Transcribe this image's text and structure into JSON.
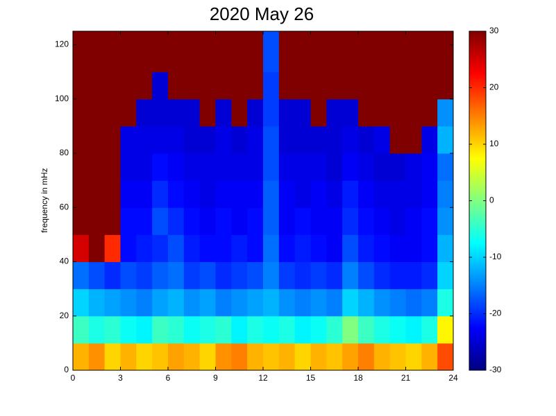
{
  "chart_data": {
    "type": "heatmap",
    "title": "2020 May 26",
    "ylabel": "frequency in mHz",
    "xbins": [
      0,
      1,
      2,
      3,
      4,
      5,
      6,
      7,
      8,
      9,
      10,
      11,
      12,
      13,
      14,
      15,
      16,
      17,
      18,
      19,
      20,
      21,
      22,
      23,
      24
    ],
    "ybins": [
      0,
      10,
      20,
      30,
      40,
      50,
      60,
      70,
      80,
      90,
      100,
      110,
      120,
      125
    ],
    "xlim": [
      0,
      24
    ],
    "xticks": [
      0,
      3,
      6,
      9,
      12,
      15,
      18,
      21,
      24
    ],
    "ylim": [
      0,
      125
    ],
    "yticks": [
      0,
      20,
      40,
      60,
      80,
      100,
      120
    ],
    "clim": [
      -30,
      30
    ],
    "cticks": [
      -30,
      -20,
      -10,
      0,
      10,
      20,
      30
    ],
    "colormap": "jet",
    "z": [
      [
        12,
        14,
        10,
        12,
        10,
        11,
        13,
        12,
        10,
        14,
        15,
        12,
        11,
        12,
        10,
        12,
        11,
        13,
        15,
        12,
        11,
        10,
        12,
        18
      ],
      [
        -4,
        -6,
        -5,
        -7,
        -8,
        -4,
        -5,
        -7,
        -6,
        -5,
        -8,
        -6,
        -7,
        -6,
        -8,
        -7,
        -5,
        0,
        -4,
        -6,
        -7,
        -8,
        -6,
        8
      ],
      [
        -10,
        -12,
        -13,
        -14,
        -15,
        -13,
        -12,
        -14,
        -13,
        -15,
        -14,
        -13,
        -12,
        -14,
        -15,
        -14,
        -15,
        -10,
        -12,
        -14,
        -15,
        -16,
        -15,
        -6
      ],
      [
        -16,
        -18,
        -20,
        -18,
        -19,
        -17,
        -16,
        -19,
        -18,
        -20,
        -19,
        -18,
        -15,
        -19,
        -20,
        -19,
        -20,
        -15,
        -18,
        -20,
        -21,
        -21,
        -20,
        -10
      ],
      [
        25,
        30,
        20,
        -22,
        -21,
        -20,
        -18,
        -21,
        -22,
        -22,
        -21,
        -22,
        -16,
        -22,
        -21,
        -22,
        -23,
        -18,
        -21,
        -22,
        -23,
        -23,
        -22,
        -12
      ],
      [
        30,
        30,
        30,
        -22,
        -22,
        -18,
        -20,
        -22,
        -23,
        -22,
        -23,
        -22,
        -17,
        -23,
        -22,
        -23,
        -23,
        -20,
        -22,
        -23,
        -24,
        -23,
        -22,
        -14
      ],
      [
        30,
        30,
        30,
        -23,
        -23,
        -20,
        -22,
        -23,
        -24,
        -23,
        -23,
        -23,
        -17,
        -23,
        -24,
        -23,
        -24,
        -21,
        -23,
        -24,
        -24,
        -24,
        -23,
        -15
      ],
      [
        30,
        30,
        30,
        -24,
        -24,
        -22,
        -23,
        -24,
        -24,
        -24,
        -24,
        -24,
        -18,
        -24,
        -24,
        -24,
        -25,
        -23,
        -24,
        -25,
        -25,
        -24,
        -23,
        -16
      ],
      [
        30,
        30,
        30,
        -24,
        -24,
        -24,
        -24,
        -25,
        -25,
        -24,
        -25,
        -24,
        -18,
        -25,
        -25,
        -25,
        -25,
        -24,
        -25,
        -24,
        30,
        30,
        -24,
        -12
      ],
      [
        30,
        30,
        30,
        30,
        -25,
        -25,
        -25,
        -25,
        30,
        -25,
        30,
        -25,
        -19,
        -25,
        -25,
        30,
        -25,
        -25,
        30,
        30,
        30,
        30,
        30,
        -14
      ],
      [
        30,
        30,
        30,
        30,
        30,
        -25,
        30,
        30,
        30,
        30,
        30,
        30,
        -19,
        30,
        30,
        30,
        30,
        30,
        30,
        30,
        30,
        30,
        30,
        30
      ],
      [
        30,
        30,
        30,
        30,
        30,
        30,
        30,
        30,
        30,
        30,
        30,
        30,
        -18,
        30,
        30,
        30,
        30,
        30,
        30,
        30,
        30,
        30,
        30,
        30
      ],
      [
        30,
        30,
        30,
        30,
        30,
        30,
        30,
        30,
        30,
        30,
        30,
        30,
        -18,
        30,
        30,
        30,
        30,
        30,
        30,
        30,
        30,
        30,
        30,
        30
      ]
    ]
  }
}
